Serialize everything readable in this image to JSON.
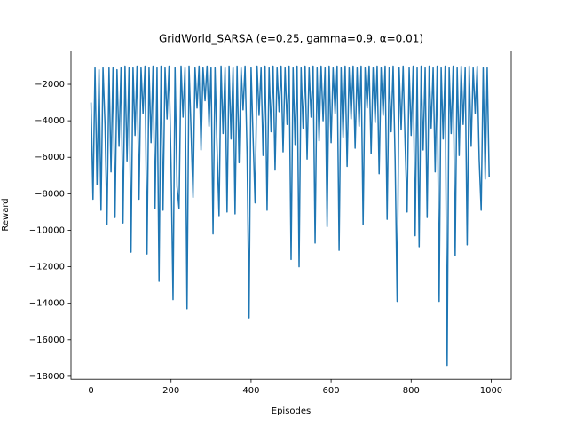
{
  "chart_data": {
    "type": "line",
    "title": "GridWorld_SARSA (e=0.25, gamma=0.9, α=0.01)",
    "xlabel": "Episodes",
    "ylabel": "Reward",
    "color": "#1f77b4",
    "xlim": [
      -50,
      1050
    ],
    "ylim": [
      -18160,
      -180
    ],
    "xticks": [
      0,
      200,
      400,
      600,
      800,
      1000
    ],
    "yticks": [
      {
        "value": -18000,
        "label": "−18000"
      },
      {
        "value": -16000,
        "label": "−16000"
      },
      {
        "value": -14000,
        "label": "−14000"
      },
      {
        "value": -12000,
        "label": "−12000"
      },
      {
        "value": -10000,
        "label": "−10000"
      },
      {
        "value": -8000,
        "label": "−8000"
      },
      {
        "value": -6000,
        "label": "−6000"
      },
      {
        "value": -4000,
        "label": "−4000"
      },
      {
        "value": -2000,
        "label": "−2000"
      }
    ],
    "x": [
      0,
      5,
      10,
      15,
      20,
      25,
      30,
      35,
      40,
      45,
      50,
      55,
      60,
      65,
      70,
      75,
      80,
      85,
      90,
      95,
      100,
      105,
      110,
      115,
      120,
      125,
      130,
      135,
      140,
      145,
      150,
      155,
      160,
      165,
      170,
      175,
      180,
      185,
      190,
      195,
      200,
      205,
      210,
      215,
      220,
      225,
      230,
      235,
      240,
      245,
      250,
      255,
      260,
      265,
      270,
      275,
      280,
      285,
      290,
      295,
      300,
      305,
      310,
      315,
      320,
      325,
      330,
      335,
      340,
      345,
      350,
      355,
      360,
      365,
      370,
      375,
      380,
      385,
      390,
      395,
      400,
      405,
      410,
      415,
      420,
      425,
      430,
      435,
      440,
      445,
      450,
      455,
      460,
      465,
      470,
      475,
      480,
      485,
      490,
      495,
      500,
      505,
      510,
      515,
      520,
      525,
      530,
      535,
      540,
      545,
      550,
      555,
      560,
      565,
      570,
      575,
      580,
      585,
      590,
      595,
      600,
      605,
      610,
      615,
      620,
      625,
      630,
      635,
      640,
      645,
      650,
      655,
      660,
      665,
      670,
      675,
      680,
      685,
      690,
      695,
      700,
      705,
      710,
      715,
      720,
      725,
      730,
      735,
      740,
      745,
      750,
      755,
      760,
      765,
      770,
      775,
      780,
      785,
      790,
      795,
      800,
      805,
      810,
      815,
      820,
      825,
      830,
      835,
      840,
      845,
      850,
      855,
      860,
      865,
      870,
      875,
      880,
      885,
      890,
      895,
      900,
      905,
      910,
      915,
      920,
      925,
      930,
      935,
      940,
      945,
      950,
      955,
      960,
      965,
      970,
      975,
      980,
      985,
      990,
      995
    ],
    "values": [
      -3000,
      -8300,
      -1100,
      -7500,
      -1200,
      -8900,
      -1100,
      -4200,
      -9700,
      -1100,
      -6800,
      -1100,
      -9300,
      -1200,
      -5400,
      -1100,
      -9600,
      -1000,
      -6200,
      -1100,
      -11200,
      -1100,
      -4800,
      -1000,
      -8300,
      -1100,
      -3600,
      -1000,
      -11300,
      -1100,
      -5200,
      -1000,
      -8800,
      -1100,
      -12800,
      -1000,
      -8900,
      -1100,
      -3900,
      -1000,
      -6400,
      -13800,
      -1100,
      -7600,
      -8800,
      -1000,
      -3800,
      -1100,
      -14300,
      -1000,
      -4500,
      -8200,
      -1100,
      -3300,
      -1000,
      -5600,
      -1100,
      -2900,
      -1000,
      -4300,
      -1100,
      -10200,
      -1100,
      -5500,
      -9200,
      -1000,
      -4700,
      -1100,
      -9000,
      -1000,
      -5000,
      -1100,
      -9100,
      -1000,
      -6300,
      -1100,
      -3400,
      -1000,
      -5800,
      -14800,
      -1100,
      -4900,
      -8500,
      -1000,
      -3700,
      -1100,
      -5900,
      -1000,
      -8900,
      -1100,
      -4600,
      -1000,
      -6700,
      -1100,
      -3500,
      -1000,
      -5700,
      -1100,
      -4200,
      -1000,
      -11600,
      -1100,
      -5300,
      -1000,
      -12000,
      -1100,
      -4400,
      -1000,
      -6100,
      -1100,
      -3800,
      -1000,
      -10700,
      -1100,
      -5100,
      -1000,
      -4000,
      -1100,
      -9800,
      -1000,
      -5200,
      -1100,
      -3600,
      -1000,
      -11100,
      -1100,
      -4900,
      -1000,
      -6500,
      -1100,
      -3900,
      -1000,
      -5500,
      -1100,
      -4300,
      -1000,
      -9700,
      -1100,
      -3300,
      -1000,
      -5800,
      -1100,
      -4100,
      -1000,
      -6900,
      -1100,
      -3700,
      -1000,
      -9400,
      -1100,
      -4600,
      -1000,
      -6200,
      -13900,
      -1100,
      -4500,
      -1000,
      -5300,
      -9000,
      -1100,
      -4800,
      -1000,
      -10300,
      -1100,
      -10900,
      -1000,
      -5600,
      -1100,
      -9300,
      -1000,
      -4400,
      -1100,
      -6800,
      -1000,
      -13900,
      -1100,
      -5000,
      -1000,
      -17400,
      -1100,
      -4700,
      -1000,
      -11400,
      -1100,
      -5900,
      -1000,
      -4200,
      -1100,
      -10800,
      -1000,
      -5400,
      -1100,
      -3600,
      -1000,
      -6100,
      -8900,
      -1100,
      -7200,
      -1100,
      -7100
    ]
  }
}
